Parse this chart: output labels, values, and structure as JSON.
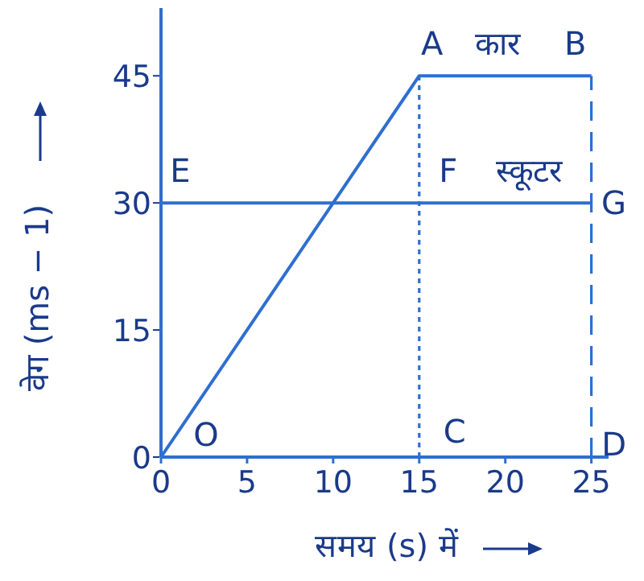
{
  "chart_data": {
    "type": "line",
    "xlabel": "समय (s) में",
    "ylabel": "वेग (ms − 1)",
    "xlim": [
      0,
      26
    ],
    "ylim": [
      0,
      53
    ],
    "xticks": [
      0,
      5,
      10,
      15,
      20,
      25
    ],
    "yticks": [
      0,
      15,
      30,
      45
    ],
    "series": [
      {
        "color": "#2e6fd0",
        "x": [
          0,
          15,
          25
        ],
        "values": [
          0,
          45,
          45
        ]
      },
      {
        "color": "#2e6fd0",
        "x": [
          0,
          25
        ],
        "values": [
          30,
          30
        ]
      },
      {
        "color": "#2e6fd0",
        "x": [
          15,
          15
        ],
        "values": [
          0,
          45
        ],
        "line_style": "dotted"
      },
      {
        "color": "#2e6fd0",
        "x": [
          25,
          25
        ],
        "values": [
          0,
          45
        ],
        "line_style": "dashed"
      }
    ],
    "annotations": [
      {
        "text": "O",
        "x": 0,
        "y": 0
      },
      {
        "text": "A",
        "x": 15,
        "y": 45
      },
      {
        "text": "कार",
        "x": 20,
        "y": 45
      },
      {
        "text": "B",
        "x": 25,
        "y": 45
      },
      {
        "text": "E",
        "x": 0,
        "y": 30
      },
      {
        "text": "F",
        "x": 15,
        "y": 30
      },
      {
        "text": "स्कूटर",
        "x": 21,
        "y": 30
      },
      {
        "text": "G",
        "x": 25,
        "y": 30
      },
      {
        "text": "C",
        "x": 15,
        "y": 0
      },
      {
        "text": "D",
        "x": 25,
        "y": 0
      }
    ]
  }
}
